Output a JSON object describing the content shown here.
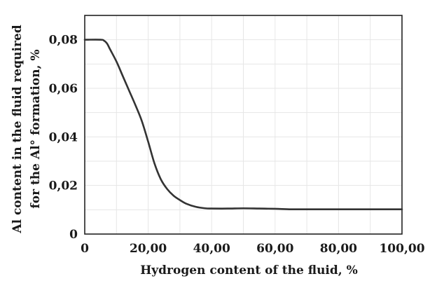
{
  "chart_data": {
    "type": "line",
    "xlabel": "Hydrogen content of the fluid, %",
    "ylabel_lines": [
      "Al content in the fluid required",
      "for the Al° formation, %"
    ],
    "xlim": [
      0,
      100
    ],
    "ylim": [
      0,
      0.09
    ],
    "grid": true,
    "x_ticks": [
      0,
      20,
      40,
      60,
      80,
      100
    ],
    "x_tick_labels": [
      "0",
      "20,00",
      "40,00",
      "60,00",
      "80,00",
      "100,00"
    ],
    "y_ticks": [
      0,
      0.02,
      0.04,
      0.06,
      0.08
    ],
    "y_tick_labels": [
      "0",
      "0,02",
      "0,04",
      "0,06",
      "0,08"
    ],
    "series": [
      {
        "color": "#333333",
        "x": [
          0,
          5,
          6,
          7,
          8,
          10,
          12,
          14,
          16,
          18,
          20,
          22,
          24,
          26,
          28,
          30,
          32,
          35,
          38,
          40,
          45,
          50,
          55,
          60,
          65,
          70,
          80,
          90,
          100
        ],
        "y": [
          0.08,
          0.08,
          0.0797,
          0.0785,
          0.076,
          0.071,
          0.065,
          0.059,
          0.053,
          0.0465,
          0.038,
          0.029,
          0.0225,
          0.0185,
          0.0158,
          0.014,
          0.0125,
          0.0112,
          0.0106,
          0.0105,
          0.0105,
          0.0106,
          0.0105,
          0.0104,
          0.0102,
          0.0102,
          0.0102,
          0.0102,
          0.0102
        ]
      }
    ]
  }
}
